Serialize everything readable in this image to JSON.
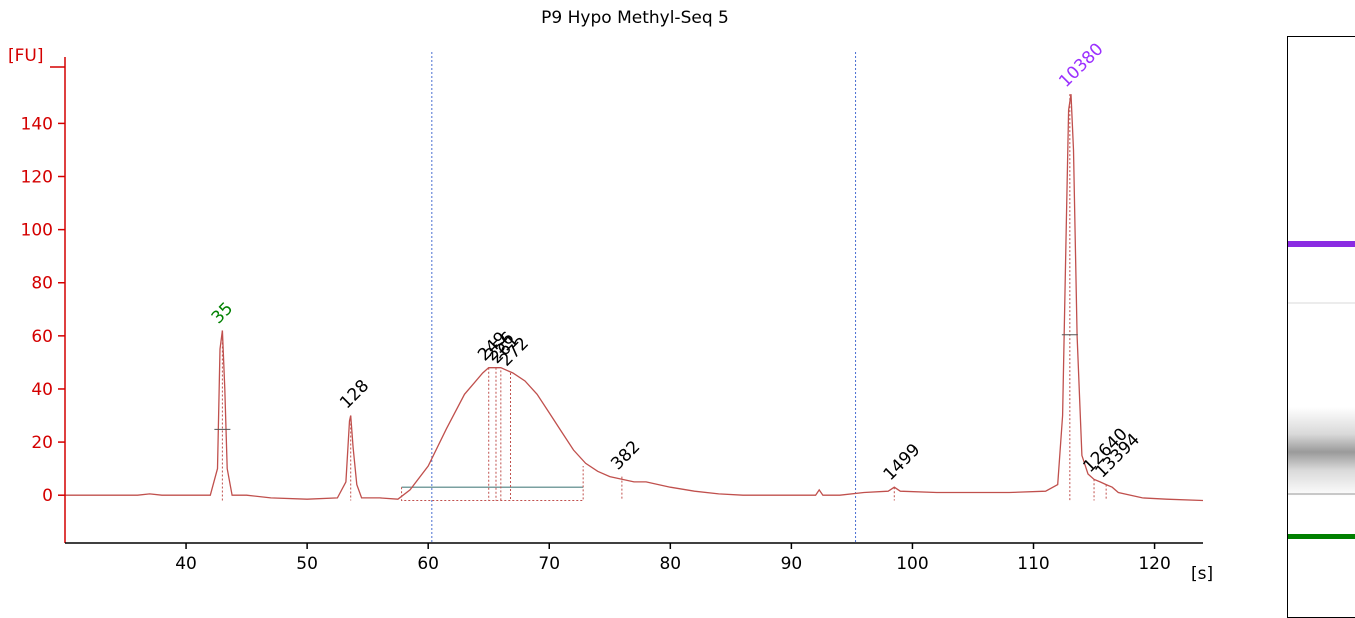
{
  "chart_data": {
    "type": "line",
    "title": "P9 Hypo Methyl-Seq 5",
    "ylabel": "[FU]",
    "xlabel": "[s]",
    "xlim": [
      30,
      124
    ],
    "ylim": [
      -18,
      165
    ],
    "xticks": [
      40,
      50,
      60,
      70,
      80,
      90,
      100,
      110,
      120
    ],
    "yticks": [
      0,
      20,
      40,
      60,
      80,
      100,
      120,
      140
    ],
    "colors": {
      "axis": "#d40000",
      "trace": "#c0504d",
      "region_line": "#4a6fd1",
      "baseline_bar": "#7aa0a0",
      "lower_marker": "#008000",
      "upper_marker": "#9b30ff",
      "peak_label": "#000000"
    },
    "region_lines_x": [
      60.3,
      95.3
    ],
    "region_baseline": {
      "x_start": 57.8,
      "x_end": 72.8,
      "y": 3
    },
    "peaks": [
      {
        "label": "35",
        "x": 43.0,
        "y": 62,
        "role": "lower marker"
      },
      {
        "label": "128",
        "x": 53.6,
        "y": 30
      },
      {
        "label": "249",
        "x": 65.0,
        "y": 48
      },
      {
        "label": "256",
        "x": 65.6,
        "y": 48
      },
      {
        "label": "261",
        "x": 66.0,
        "y": 47
      },
      {
        "label": "272",
        "x": 66.8,
        "y": 46
      },
      {
        "label": "382",
        "x": 76.0,
        "y": 7
      },
      {
        "label": "1499",
        "x": 98.5,
        "y": 3
      },
      {
        "label": "10380",
        "x": 113.0,
        "y": 151,
        "role": "upper marker"
      },
      {
        "label": "12640",
        "x": 115.0,
        "y": 6
      },
      {
        "label": "13394",
        "x": 116.0,
        "y": 4
      }
    ],
    "series": [
      {
        "x": [
          30,
          36,
          37,
          38,
          40,
          42,
          42.6,
          42.8,
          43.0,
          43.2,
          43.4,
          43.8,
          45,
          47,
          50,
          52.5,
          53.2,
          53.5,
          53.6,
          53.8,
          54.1,
          54.5,
          56,
          57.5,
          58.5,
          60,
          61.5,
          63,
          64.5,
          65,
          66,
          67,
          68,
          69,
          70,
          71,
          72,
          73,
          74,
          75,
          76,
          77,
          78,
          80,
          82,
          84,
          86,
          88,
          90,
          92,
          92.3,
          92.6,
          94,
          96,
          98,
          98.5,
          99,
          102,
          105,
          108,
          111,
          112,
          112.4,
          112.7,
          112.9,
          113.1,
          113.3,
          113.6,
          114,
          114.5,
          115,
          115.5,
          116,
          116.5,
          117,
          119,
          121,
          124
        ],
        "y": [
          0,
          0,
          0.5,
          0,
          0,
          0,
          10,
          55,
          62,
          40,
          10,
          0,
          0,
          -1,
          -1.5,
          -1,
          5,
          28,
          30,
          18,
          4,
          -1,
          -1,
          -1.5,
          2,
          11,
          25,
          38,
          46,
          48,
          48,
          46,
          43,
          38,
          31,
          24,
          17,
          12,
          9,
          7,
          6,
          5,
          5,
          3,
          1.5,
          0.5,
          0,
          0,
          0,
          0,
          2,
          0,
          0,
          1,
          1.5,
          3,
          1.5,
          1,
          1,
          1,
          1.5,
          4,
          30,
          100,
          145,
          151,
          130,
          60,
          15,
          8,
          6,
          5,
          4,
          3,
          1,
          -1,
          -1.5,
          -2
        ]
      }
    ]
  }
}
